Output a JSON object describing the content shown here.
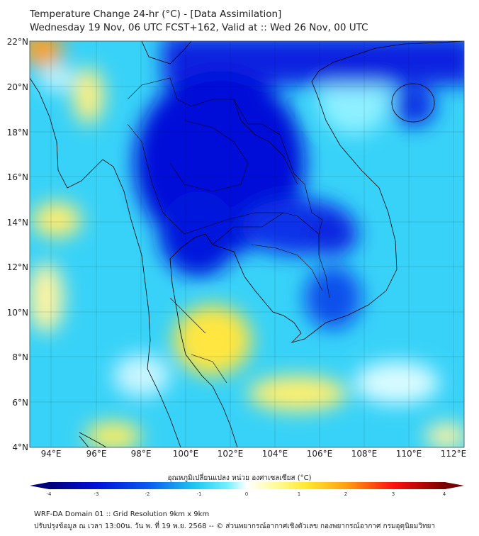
{
  "title": "Temperature Change 24-hr (°C) - [Data Assimilation]",
  "subtitle": "Wednesday 19 Nov, 06 UTC FCST+162, Valid at :: Wed 26 Nov, 00 UTC",
  "map": {
    "lat_labels": [
      "22°N",
      "20°N",
      "18°N",
      "16°N",
      "14°N",
      "12°N",
      "10°N",
      "8°N",
      "6°N",
      "4°N"
    ],
    "lon_labels": [
      "94°E",
      "96°E",
      "98°E",
      "100°E",
      "102°E",
      "104°E",
      "106°E",
      "108°E",
      "110°E",
      "112°E"
    ],
    "colors": {
      "deep_blue": "#0010d8",
      "blue": "#0a5af0",
      "cyan": "#30d0f8",
      "light": "#b8f4ff",
      "yellow": "#ffe840",
      "orange": "#ffa020"
    }
  },
  "colorbar": {
    "label": "อุณหภูมิเปลี่ยนแปลง หน่วย องศาเซลเซียส (°C)",
    "ticks": [
      "-4",
      "-3",
      "-2",
      "-1",
      "0",
      "1",
      "2",
      "3",
      "4"
    ],
    "min": -4,
    "max": 4
  },
  "footer": {
    "line1": "WRF-DA Domain 01 :: Grid Resolution 9km x 9km",
    "line2": "ปรับปรุงข้อมูล ณ เวลา 13:00น. วัน พ. ที่ 19 พ.ย. 2568 -- © ส่วนพยากรณ์อากาศเชิงตัวเลข กองพยากรณ์อากาศ กรมอุตุนิยมวิทยา"
  }
}
